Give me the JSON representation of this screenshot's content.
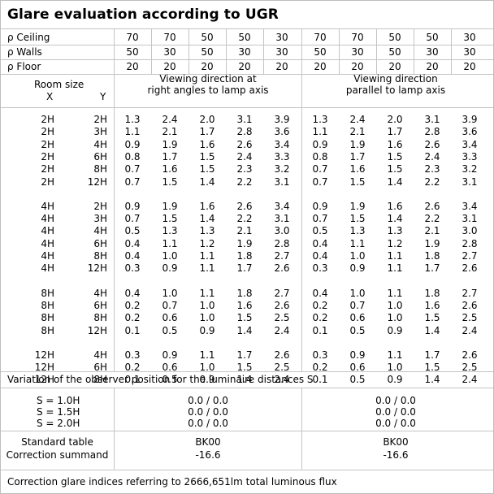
{
  "title": "Glare evaluation according to UGR",
  "reflectance": {
    "labels": [
      "ρ Ceiling",
      "ρ Walls",
      "ρ Floor"
    ],
    "rows": [
      [
        "70",
        "70",
        "50",
        "50",
        "30",
        "70",
        "70",
        "50",
        "50",
        "30"
      ],
      [
        "50",
        "30",
        "50",
        "30",
        "30",
        "50",
        "30",
        "50",
        "30",
        "30"
      ],
      [
        "20",
        "20",
        "20",
        "20",
        "20",
        "20",
        "20",
        "20",
        "20",
        "20"
      ]
    ]
  },
  "room_size": {
    "label": "Room size",
    "x": "X",
    "y": "Y"
  },
  "view_perp": [
    "Viewing direction at",
    "right angles to lamp axis"
  ],
  "view_par": [
    "Viewing direction",
    "parallel to lamp axis"
  ],
  "groups": [
    {
      "rows": [
        {
          "x": "2H",
          "y": "2H",
          "v": [
            "1.3",
            "2.4",
            "2.0",
            "3.1",
            "3.9",
            "1.3",
            "2.4",
            "2.0",
            "3.1",
            "3.9"
          ]
        },
        {
          "x": "2H",
          "y": "3H",
          "v": [
            "1.1",
            "2.1",
            "1.7",
            "2.8",
            "3.6",
            "1.1",
            "2.1",
            "1.7",
            "2.8",
            "3.6"
          ]
        },
        {
          "x": "2H",
          "y": "4H",
          "v": [
            "0.9",
            "1.9",
            "1.6",
            "2.6",
            "3.4",
            "0.9",
            "1.9",
            "1.6",
            "2.6",
            "3.4"
          ]
        },
        {
          "x": "2H",
          "y": "6H",
          "v": [
            "0.8",
            "1.7",
            "1.5",
            "2.4",
            "3.3",
            "0.8",
            "1.7",
            "1.5",
            "2.4",
            "3.3"
          ]
        },
        {
          "x": "2H",
          "y": "8H",
          "v": [
            "0.7",
            "1.6",
            "1.5",
            "2.3",
            "3.2",
            "0.7",
            "1.6",
            "1.5",
            "2.3",
            "3.2"
          ]
        },
        {
          "x": "2H",
          "y": "12H",
          "v": [
            "0.7",
            "1.5",
            "1.4",
            "2.2",
            "3.1",
            "0.7",
            "1.5",
            "1.4",
            "2.2",
            "3.1"
          ]
        }
      ]
    },
    {
      "rows": [
        {
          "x": "4H",
          "y": "2H",
          "v": [
            "0.9",
            "1.9",
            "1.6",
            "2.6",
            "3.4",
            "0.9",
            "1.9",
            "1.6",
            "2.6",
            "3.4"
          ]
        },
        {
          "x": "4H",
          "y": "3H",
          "v": [
            "0.7",
            "1.5",
            "1.4",
            "2.2",
            "3.1",
            "0.7",
            "1.5",
            "1.4",
            "2.2",
            "3.1"
          ]
        },
        {
          "x": "4H",
          "y": "4H",
          "v": [
            "0.5",
            "1.3",
            "1.3",
            "2.1",
            "3.0",
            "0.5",
            "1.3",
            "1.3",
            "2.1",
            "3.0"
          ]
        },
        {
          "x": "4H",
          "y": "6H",
          "v": [
            "0.4",
            "1.1",
            "1.2",
            "1.9",
            "2.8",
            "0.4",
            "1.1",
            "1.2",
            "1.9",
            "2.8"
          ]
        },
        {
          "x": "4H",
          "y": "8H",
          "v": [
            "0.4",
            "1.0",
            "1.1",
            "1.8",
            "2.7",
            "0.4",
            "1.0",
            "1.1",
            "1.8",
            "2.7"
          ]
        },
        {
          "x": "4H",
          "y": "12H",
          "v": [
            "0.3",
            "0.9",
            "1.1",
            "1.7",
            "2.6",
            "0.3",
            "0.9",
            "1.1",
            "1.7",
            "2.6"
          ]
        }
      ]
    },
    {
      "rows": [
        {
          "x": "8H",
          "y": "4H",
          "v": [
            "0.4",
            "1.0",
            "1.1",
            "1.8",
            "2.7",
            "0.4",
            "1.0",
            "1.1",
            "1.8",
            "2.7"
          ]
        },
        {
          "x": "8H",
          "y": "6H",
          "v": [
            "0.2",
            "0.7",
            "1.0",
            "1.6",
            "2.6",
            "0.2",
            "0.7",
            "1.0",
            "1.6",
            "2.6"
          ]
        },
        {
          "x": "8H",
          "y": "8H",
          "v": [
            "0.2",
            "0.6",
            "1.0",
            "1.5",
            "2.5",
            "0.2",
            "0.6",
            "1.0",
            "1.5",
            "2.5"
          ]
        },
        {
          "x": "8H",
          "y": "12H",
          "v": [
            "0.1",
            "0.5",
            "0.9",
            "1.4",
            "2.4",
            "0.1",
            "0.5",
            "0.9",
            "1.4",
            "2.4"
          ]
        }
      ]
    },
    {
      "rows": [
        {
          "x": "12H",
          "y": "4H",
          "v": [
            "0.3",
            "0.9",
            "1.1",
            "1.7",
            "2.6",
            "0.3",
            "0.9",
            "1.1",
            "1.7",
            "2.6"
          ]
        },
        {
          "x": "12H",
          "y": "6H",
          "v": [
            "0.2",
            "0.6",
            "1.0",
            "1.5",
            "2.5",
            "0.2",
            "0.6",
            "1.0",
            "1.5",
            "2.5"
          ]
        },
        {
          "x": "12H",
          "y": "8H",
          "v": [
            "0.1",
            "0.5",
            "0.9",
            "1.4",
            "2.4",
            "0.1",
            "0.5",
            "0.9",
            "1.4",
            "2.4"
          ]
        }
      ]
    }
  ],
  "variation": {
    "title": "Variation of the observer position for the luminaire distances S",
    "rows": [
      {
        "label": "S = 1.0H",
        "perp": "0.0 / 0.0",
        "par": "0.0 / 0.0"
      },
      {
        "label": "S = 1.5H",
        "perp": "0.0 / 0.0",
        "par": "0.0 / 0.0"
      },
      {
        "label": "S = 2.0H",
        "perp": "0.0 / 0.0",
        "par": "0.0 / 0.0"
      }
    ]
  },
  "standard": {
    "label": "Standard table",
    "perp": "BK00",
    "par": "BK00"
  },
  "correction": {
    "label": "Correction summand",
    "perp": "-16.6",
    "par": "-16.6"
  },
  "footer": "Correction glare indices referring to 2666,651lm total luminous flux"
}
